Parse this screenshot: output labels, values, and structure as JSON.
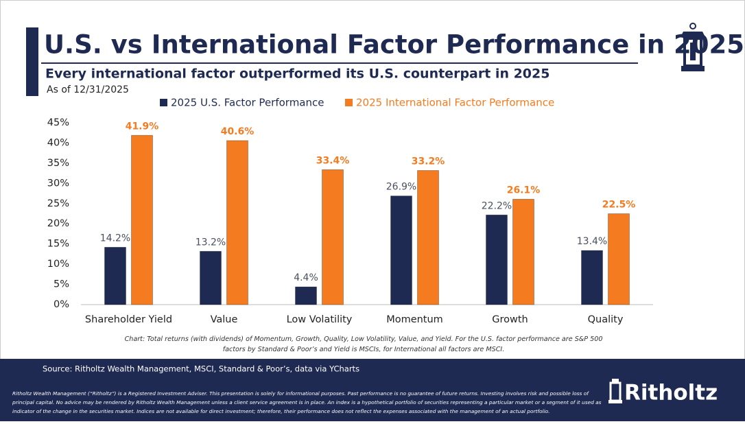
{
  "chart_data": {
    "type": "bar",
    "title": "U.S. vs International Factor Performance in 2025",
    "subtitle": "Every international factor outperformed its U.S. counterpart in 2025",
    "date_note": "As of 12/31/2025",
    "categories": [
      "Shareholder Yield",
      "Value",
      "Low Volatility",
      "Momentum",
      "Growth",
      "Quality"
    ],
    "series": [
      {
        "name": "2025 U.S. Factor Performance",
        "color": "#1f2a52",
        "values": [
          14.2,
          13.2,
          4.4,
          26.9,
          22.2,
          13.4
        ],
        "value_labels": [
          "14.2%",
          "13.2%",
          "4.4%",
          "26.9%",
          "22.2%",
          "13.4%"
        ],
        "label_color": "#4a4f5e"
      },
      {
        "name": "2025 International Factor Performance",
        "color": "#f47b20",
        "values": [
          41.9,
          40.6,
          33.4,
          33.2,
          26.1,
          22.5
        ],
        "value_labels": [
          "41.9%",
          "40.6%",
          "33.4%",
          "33.2%",
          "26.1%",
          "22.5%"
        ],
        "label_color": "#f47b20"
      }
    ],
    "ylim": [
      0,
      45
    ],
    "yticks": [
      {
        "value": 0,
        "label": "0%"
      },
      {
        "value": 5,
        "label": "5%"
      },
      {
        "value": 10,
        "label": "10%"
      },
      {
        "value": 15,
        "label": "15%"
      },
      {
        "value": 20,
        "label": "20%"
      },
      {
        "value": 25,
        "label": "25%"
      },
      {
        "value": 30,
        "label": "30%"
      },
      {
        "value": 35,
        "label": "35%"
      },
      {
        "value": 40,
        "label": "40%"
      },
      {
        "value": 45,
        "label": "45%"
      }
    ],
    "grid": false,
    "caption": [
      "Chart: Total returns (with dividends) of Momentum, Growth, Quality, Low Volatility, Value, and Yield. For the U.S. factor performance are S&P 500",
      "factors by Standard & Poor’s and Yield is MSCIs, for International all factors are MSCI."
    ]
  },
  "footer": {
    "source": "Source: Ritholtz Wealth Management, MSCI, Standard & Poor’s, data via YCharts",
    "disclaimer": [
      "Ritholtz Wealth Management (“Ritholtz”) is a Registered Investment Adviser. This presentation is solely for informational purposes. Past performance is no guarantee of future returns. Investing involves risk and possible loss of",
      "principal capital. No advice may be rendered by Ritholtz Wealth Management unless a client service agreement is in place. An index is a hypothetical portfolio of securities representing a particular market or a segment of it used as",
      "indicator of the change in the securities market. Indices are not available for direct investment; therefore, their performance does not reflect the expenses associated with the management of an actual portfolio."
    ],
    "brand": "Ritholtz"
  }
}
